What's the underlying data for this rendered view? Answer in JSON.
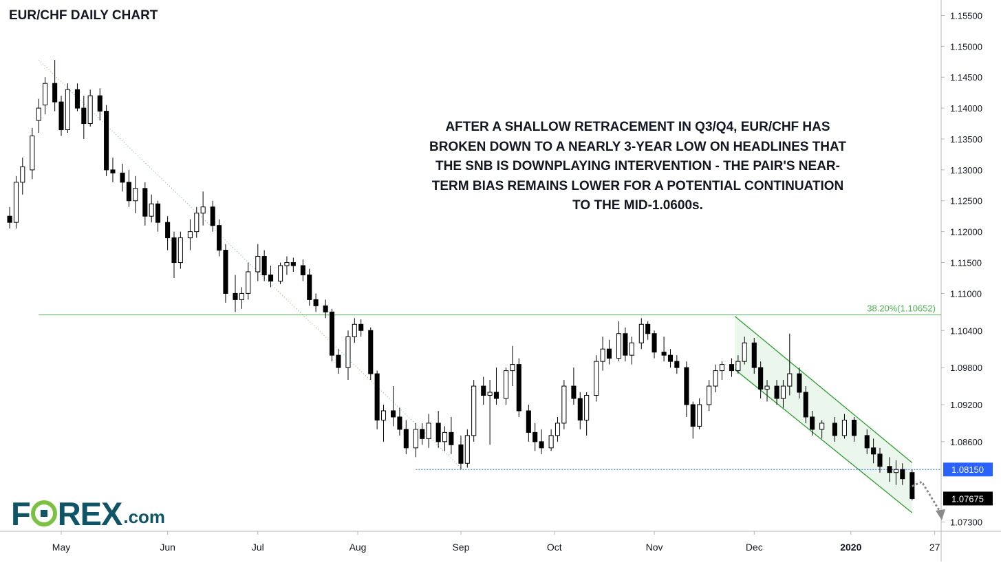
{
  "title": "EUR/CHF DAILY CHART",
  "annotation": {
    "lines": [
      "AFTER A SHALLOW RETRACEMENT IN Q3/Q4, EUR/CHF HAS",
      "BROKEN DOWN TO A NEARLY 3-YEAR LOW ON HEADLINES THAT",
      "THE SNB IS DOWNPLAYING INTERVENTION - THE PAIR'S NEAR-",
      "TERM BIAS REMAINS LOWER FOR A POTENTIAL CONTINUATION",
      "TO THE MID-1.0600s."
    ]
  },
  "logo": {
    "brand_left": "F",
    "brand_right": "REX",
    "suffix": ".com",
    "colors": {
      "text": "#0f5567",
      "accent": "#7cc242"
    }
  },
  "colors": {
    "up_body": "#ffffff",
    "down_body": "#000000",
    "candle_stroke": "#000000",
    "fib_line": "#4caf50",
    "support_line": "#2962ff",
    "channel_fill": "#e8f5e9",
    "channel_line": "#2e9e2e",
    "trendline": "#66bb6a",
    "price_label_bg": "#2962ff",
    "last_label_bg": "#000000",
    "axis_text": "#131722",
    "arrow": "#8a8a8a"
  },
  "chart_data": {
    "type": "candlestick",
    "title": "EUR/CHF DAILY CHART",
    "x_range": [
      "2019-04-12",
      "2020-01-29"
    ],
    "ylim": [
      1.0715,
      1.1575
    ],
    "y_ticks": [
      "1.15500",
      "1.15000",
      "1.14500",
      "1.14000",
      "1.13500",
      "1.13000",
      "1.12500",
      "1.12000",
      "1.11500",
      "1.11000",
      "1.10400",
      "1.09800",
      "1.09200",
      "1.08600",
      "1.07300"
    ],
    "x_ticks": [
      {
        "date": "2019-05-01",
        "label": "May"
      },
      {
        "date": "2019-06-03",
        "label": "Jun"
      },
      {
        "date": "2019-07-01",
        "label": "Jul"
      },
      {
        "date": "2019-08-01",
        "label": "Aug"
      },
      {
        "date": "2019-09-02",
        "label": "Sep"
      },
      {
        "date": "2019-10-01",
        "label": "Oct"
      },
      {
        "date": "2019-11-01",
        "label": "Nov"
      },
      {
        "date": "2019-12-02",
        "label": "Dec"
      },
      {
        "date": "2020-01-01",
        "label": "2020"
      },
      {
        "date": "2020-01-27",
        "label": "27"
      }
    ],
    "bold_x_tick": "2020",
    "levels": [
      {
        "name": "fib_38_2",
        "label": "38.20%(1.10652)",
        "value": 1.10652,
        "from": "2019-04-24"
      },
      {
        "name": "support",
        "label": "1.08150",
        "value": 1.0815,
        "from": "2019-08-19"
      }
    ],
    "last_price_label": "1.07675",
    "trendline": {
      "from": {
        "date": "2019-04-24",
        "value": 1.1478
      },
      "to": {
        "date": "2019-09-02",
        "value": 1.0818
      }
    },
    "channel": {
      "upper": {
        "from": {
          "date": "2019-11-26",
          "value": 1.1063
        },
        "to": {
          "date": "2020-01-20",
          "value": 1.0826
        }
      },
      "lower": {
        "from": {
          "date": "2019-11-26",
          "value": 1.0977
        },
        "to": {
          "date": "2020-01-20",
          "value": 1.0745
        }
      }
    },
    "projection_arrow": {
      "from": {
        "date": "2020-01-20",
        "value": 1.0788
      },
      "mid": {
        "date": "2020-01-23",
        "value": 1.0795
      },
      "to": {
        "date": "2020-01-29",
        "value": 1.0735
      }
    },
    "ohlc_points": [
      [
        "2019-04-15",
        1.1225,
        1.124,
        1.1205,
        1.1215
      ],
      [
        "2019-04-17",
        1.1215,
        1.129,
        1.1205,
        1.128
      ],
      [
        "2019-04-19",
        1.128,
        1.132,
        1.126,
        1.1305
      ],
      [
        "2019-04-22",
        1.13,
        1.1368,
        1.1285,
        1.1355
      ],
      [
        "2019-04-24",
        1.138,
        1.1415,
        1.136,
        1.14
      ],
      [
        "2019-04-26",
        1.1405,
        1.145,
        1.139,
        1.144
      ],
      [
        "2019-04-29",
        1.144,
        1.1478,
        1.1395,
        1.141
      ],
      [
        "2019-05-01",
        1.141,
        1.142,
        1.1355,
        1.1365
      ],
      [
        "2019-05-03",
        1.1365,
        1.144,
        1.136,
        1.143
      ],
      [
        "2019-05-06",
        1.143,
        1.144,
        1.1395,
        1.14
      ],
      [
        "2019-05-08",
        1.14,
        1.142,
        1.135,
        1.1375
      ],
      [
        "2019-05-10",
        1.1375,
        1.143,
        1.137,
        1.142
      ],
      [
        "2019-05-13",
        1.142,
        1.1432,
        1.138,
        1.1395
      ],
      [
        "2019-05-15",
        1.1395,
        1.1405,
        1.129,
        1.13
      ],
      [
        "2019-05-17",
        1.13,
        1.132,
        1.128,
        1.1295
      ],
      [
        "2019-05-20",
        1.1295,
        1.131,
        1.1265,
        1.128
      ],
      [
        "2019-05-22",
        1.128,
        1.13,
        1.124,
        1.125
      ],
      [
        "2019-05-24",
        1.125,
        1.129,
        1.123,
        1.127
      ],
      [
        "2019-05-27",
        1.127,
        1.128,
        1.121,
        1.1225
      ],
      [
        "2019-05-29",
        1.1225,
        1.126,
        1.1215,
        1.1245
      ],
      [
        "2019-05-31",
        1.1245,
        1.125,
        1.12,
        1.1215
      ],
      [
        "2019-06-03",
        1.1215,
        1.1225,
        1.117,
        1.119
      ],
      [
        "2019-06-05",
        1.119,
        1.12,
        1.1125,
        1.115
      ],
      [
        "2019-06-07",
        1.115,
        1.12,
        1.114,
        1.119
      ],
      [
        "2019-06-10",
        1.119,
        1.122,
        1.117,
        1.12
      ],
      [
        "2019-06-12",
        1.12,
        1.124,
        1.119,
        1.123
      ],
      [
        "2019-06-14",
        1.123,
        1.1265,
        1.121,
        1.124
      ],
      [
        "2019-06-17",
        1.124,
        1.125,
        1.12,
        1.121
      ],
      [
        "2019-06-19",
        1.121,
        1.122,
        1.116,
        1.117
      ],
      [
        "2019-06-21",
        1.117,
        1.118,
        1.1085,
        1.11
      ],
      [
        "2019-06-24",
        1.11,
        1.113,
        1.107,
        1.109
      ],
      [
        "2019-06-26",
        1.109,
        1.111,
        1.1075,
        1.11
      ],
      [
        "2019-06-28",
        1.11,
        1.115,
        1.109,
        1.1135
      ],
      [
        "2019-07-01",
        1.1135,
        1.118,
        1.112,
        1.116
      ],
      [
        "2019-07-03",
        1.116,
        1.117,
        1.112,
        1.113
      ],
      [
        "2019-07-05",
        1.113,
        1.1145,
        1.111,
        1.112
      ],
      [
        "2019-07-08",
        1.112,
        1.115,
        1.1115,
        1.1145
      ],
      [
        "2019-07-10",
        1.1145,
        1.116,
        1.113,
        1.115
      ],
      [
        "2019-07-12",
        1.115,
        1.1158,
        1.1135,
        1.1145
      ],
      [
        "2019-07-15",
        1.1145,
        1.1155,
        1.112,
        1.113
      ],
      [
        "2019-07-17",
        1.113,
        1.114,
        1.108,
        1.109
      ],
      [
        "2019-07-19",
        1.109,
        1.11,
        1.107,
        1.108
      ],
      [
        "2019-07-22",
        1.108,
        1.109,
        1.106,
        1.107
      ],
      [
        "2019-07-24",
        1.107,
        1.1075,
        1.099,
        1.1
      ],
      [
        "2019-07-26",
        1.1,
        1.101,
        1.097,
        1.098
      ],
      [
        "2019-07-29",
        1.098,
        1.104,
        1.096,
        1.103
      ],
      [
        "2019-07-31",
        1.103,
        1.106,
        1.102,
        1.105
      ],
      [
        "2019-08-02",
        1.105,
        1.1058,
        1.103,
        1.104
      ],
      [
        "2019-08-05",
        1.104,
        1.1045,
        1.096,
        1.097
      ],
      [
        "2019-08-07",
        1.097,
        1.0975,
        1.088,
        1.0895
      ],
      [
        "2019-08-09",
        1.0895,
        1.092,
        1.086,
        1.091
      ],
      [
        "2019-08-12",
        1.091,
        1.095,
        1.0885,
        1.09
      ],
      [
        "2019-08-14",
        1.09,
        1.0915,
        1.087,
        1.088
      ],
      [
        "2019-08-16",
        1.088,
        1.0895,
        1.084,
        1.085
      ],
      [
        "2019-08-19",
        1.085,
        1.089,
        1.0835,
        1.088
      ],
      [
        "2019-08-21",
        1.088,
        1.089,
        1.0855,
        1.0865
      ],
      [
        "2019-08-23",
        1.0865,
        1.0905,
        1.085,
        1.089
      ],
      [
        "2019-08-26",
        1.089,
        1.091,
        1.085,
        1.086
      ],
      [
        "2019-08-28",
        1.086,
        1.0885,
        1.0845,
        1.0875
      ],
      [
        "2019-08-30",
        1.0875,
        1.09,
        1.084,
        1.0855
      ],
      [
        "2019-09-02",
        1.0855,
        1.087,
        1.0815,
        1.0825
      ],
      [
        "2019-09-04",
        1.0825,
        1.088,
        1.0818,
        1.087
      ],
      [
        "2019-09-06",
        1.087,
        1.096,
        1.086,
        1.095
      ],
      [
        "2019-09-09",
        1.095,
        1.0965,
        1.092,
        1.0935
      ],
      [
        "2019-09-11",
        1.0935,
        1.096,
        1.0855,
        1.094
      ],
      [
        "2019-09-13",
        1.094,
        1.098,
        1.092,
        1.093
      ],
      [
        "2019-09-16",
        1.093,
        1.098,
        1.092,
        1.0975
      ],
      [
        "2019-09-18",
        1.0975,
        1.1015,
        1.095,
        1.0985
      ],
      [
        "2019-09-20",
        1.0985,
        1.0995,
        1.09,
        1.091
      ],
      [
        "2019-09-23",
        1.091,
        1.092,
        1.086,
        1.0875
      ],
      [
        "2019-09-25",
        1.0875,
        1.089,
        1.0845,
        1.086
      ],
      [
        "2019-09-27",
        1.086,
        1.088,
        1.084,
        1.085
      ],
      [
        "2019-09-30",
        1.085,
        1.088,
        1.0845,
        1.087
      ],
      [
        "2019-10-02",
        1.087,
        1.09,
        1.086,
        1.089
      ],
      [
        "2019-10-04",
        1.089,
        1.096,
        1.088,
        1.095
      ],
      [
        "2019-10-07",
        1.095,
        1.098,
        1.092,
        1.093
      ],
      [
        "2019-10-09",
        1.093,
        1.094,
        1.088,
        1.0895
      ],
      [
        "2019-10-11",
        1.0895,
        1.094,
        1.087,
        1.0935
      ],
      [
        "2019-10-14",
        1.0935,
        1.1,
        1.0925,
        1.099
      ],
      [
        "2019-10-16",
        1.099,
        1.103,
        1.0975,
        1.101
      ],
      [
        "2019-10-18",
        1.101,
        1.1025,
        1.0985,
        1.0995
      ],
      [
        "2019-10-21",
        1.0995,
        1.1055,
        1.099,
        1.1035
      ],
      [
        "2019-10-23",
        1.1035,
        1.1045,
        1.099,
        1.1
      ],
      [
        "2019-10-25",
        1.1,
        1.103,
        1.0985,
        1.102
      ],
      [
        "2019-10-28",
        1.102,
        1.106,
        1.101,
        1.105
      ],
      [
        "2019-10-30",
        1.105,
        1.1055,
        1.1025,
        1.1035
      ],
      [
        "2019-11-01",
        1.1035,
        1.104,
        1.0995,
        1.1005
      ],
      [
        "2019-11-04",
        1.1005,
        1.103,
        1.099,
        1.1
      ],
      [
        "2019-11-06",
        1.1,
        1.101,
        1.098,
        1.099
      ],
      [
        "2019-11-08",
        1.099,
        1.1,
        1.097,
        1.098
      ],
      [
        "2019-11-11",
        1.098,
        1.099,
        1.09,
        1.092
      ],
      [
        "2019-11-13",
        1.092,
        1.0925,
        1.0865,
        1.0885
      ],
      [
        "2019-11-15",
        1.0885,
        1.093,
        1.088,
        1.092
      ],
      [
        "2019-11-18",
        1.092,
        1.096,
        1.091,
        1.095
      ],
      [
        "2019-11-20",
        1.095,
        1.0985,
        1.094,
        1.0975
      ],
      [
        "2019-11-22",
        1.0975,
        1.099,
        1.096,
        1.0985
      ],
      [
        "2019-11-25",
        1.0985,
        1.0995,
        1.0965,
        1.0975
      ],
      [
        "2019-11-27",
        1.0975,
        1.1,
        1.097,
        1.099
      ],
      [
        "2019-11-29",
        1.099,
        1.103,
        1.0985,
        1.102
      ],
      [
        "2019-12-02",
        1.102,
        1.1028,
        1.097,
        1.098
      ],
      [
        "2019-12-04",
        1.098,
        1.099,
        1.093,
        1.0945
      ],
      [
        "2019-12-06",
        1.0945,
        1.096,
        1.0925,
        1.095
      ],
      [
        "2019-12-09",
        1.095,
        1.096,
        1.092,
        1.093
      ],
      [
        "2019-12-11",
        1.093,
        1.096,
        1.0915,
        1.095
      ],
      [
        "2019-12-13",
        1.095,
        1.1035,
        1.0935,
        1.097
      ],
      [
        "2019-12-16",
        1.097,
        1.098,
        1.093,
        1.094
      ],
      [
        "2019-12-18",
        1.094,
        1.095,
        1.089,
        1.09
      ],
      [
        "2019-12-20",
        1.09,
        1.091,
        1.087,
        1.088
      ],
      [
        "2019-12-23",
        1.088,
        1.0895,
        1.0865,
        1.089
      ],
      [
        "2019-12-27",
        1.089,
        1.09,
        1.086,
        1.087
      ],
      [
        "2019-12-30",
        1.087,
        1.0905,
        1.0865,
        1.0895
      ],
      [
        "2020-01-02",
        1.0895,
        1.09,
        1.086,
        1.087
      ],
      [
        "2020-01-06",
        1.087,
        1.088,
        1.084,
        1.085
      ],
      [
        "2020-01-08",
        1.085,
        1.0865,
        1.0825,
        1.084
      ],
      [
        "2020-01-10",
        1.084,
        1.085,
        1.081,
        1.082
      ],
      [
        "2020-01-13",
        1.082,
        1.0835,
        1.0795,
        1.081
      ],
      [
        "2020-01-15",
        1.081,
        1.083,
        1.079,
        1.0815
      ],
      [
        "2020-01-17",
        1.0815,
        1.0825,
        1.079,
        1.08
      ],
      [
        "2020-01-20",
        1.081,
        1.0815,
        1.0765,
        1.0768
      ]
    ]
  }
}
